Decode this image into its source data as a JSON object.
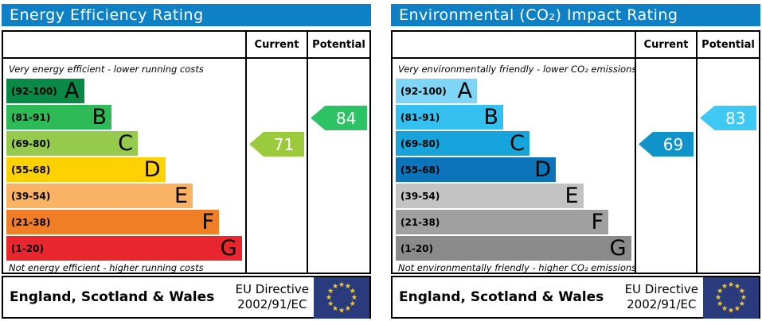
{
  "panels": [
    {
      "title": "Energy Efficiency Rating",
      "header": {
        "current": "Current",
        "potential": "Potential"
      },
      "captions": {
        "top": "Very energy efficient - lower running costs",
        "bottom": "Not energy efficient - higher running costs"
      },
      "bands": [
        {
          "range": "(92-100)",
          "letter": "A",
          "color": "#088a46",
          "width_pct": 32.5
        },
        {
          "range": "(81-91)",
          "letter": "B",
          "color": "#2dba57",
          "width_pct": 44
        },
        {
          "range": "(69-80)",
          "letter": "C",
          "color": "#95ca4d",
          "width_pct": 55
        },
        {
          "range": "(55-68)",
          "letter": "D",
          "color": "#fed105",
          "width_pct": 66.5
        },
        {
          "range": "(39-54)",
          "letter": "E",
          "color": "#fab264",
          "width_pct": 78
        },
        {
          "range": "(21-38)",
          "letter": "F",
          "color": "#f07e26",
          "width_pct": 89
        },
        {
          "range": "(1-20)",
          "letter": "G",
          "color": "#e8262d",
          "width_pct": 98.5
        }
      ],
      "arrows": {
        "current": {
          "value": "71",
          "color": "#9bca3d",
          "band_index": 2
        },
        "potential": {
          "value": "84",
          "color": "#2dc263",
          "band_index": 1
        }
      },
      "footer": {
        "region": "England, Scotland & Wales",
        "directive": [
          "EU Directive",
          "2002/91/EC"
        ]
      }
    },
    {
      "title": "Environmental (CO₂) Impact Rating",
      "header": {
        "current": "Current",
        "potential": "Potential"
      },
      "captions": {
        "top": "Very environmentally friendly - lower CO₂ emissions",
        "bottom": "Not environmentally friendly - higher CO₂ emissions"
      },
      "bands": [
        {
          "range": "(92-100)",
          "letter": "A",
          "color": "#7ed5f5",
          "width_pct": 34
        },
        {
          "range": "(81-91)",
          "letter": "B",
          "color": "#35c1f0",
          "width_pct": 45
        },
        {
          "range": "(69-80)",
          "letter": "C",
          "color": "#17a3dc",
          "width_pct": 56
        },
        {
          "range": "(55-68)",
          "letter": "D",
          "color": "#0c74b8",
          "width_pct": 67
        },
        {
          "range": "(39-54)",
          "letter": "E",
          "color": "#c3c3c3",
          "width_pct": 78.5
        },
        {
          "range": "(21-38)",
          "letter": "F",
          "color": "#a0a0a0",
          "width_pct": 89
        },
        {
          "range": "(1-20)",
          "letter": "G",
          "color": "#8a8a8a",
          "width_pct": 98.5
        }
      ],
      "arrows": {
        "current": {
          "value": "69",
          "color": "#0f93c9",
          "band_index": 2
        },
        "potential": {
          "value": "83",
          "color": "#3fc8f4",
          "band_index": 1
        }
      },
      "footer": {
        "region": "England, Scotland & Wales",
        "directive": [
          "EU Directive",
          "2002/91/EC"
        ]
      }
    }
  ],
  "flag_colors": {
    "field": "#2a3b7d",
    "stars": "#ffcc00"
  },
  "chart_data": [
    {
      "type": "bar",
      "title": "Energy Efficiency Rating",
      "categories": [
        "A (92-100)",
        "B (81-91)",
        "C (69-80)",
        "D (55-68)",
        "E (39-54)",
        "F (21-38)",
        "G (1-20)"
      ],
      "band_colors": [
        "#088a46",
        "#2dba57",
        "#95ca4d",
        "#fed105",
        "#fab264",
        "#f07e26",
        "#e8262d"
      ],
      "series": [
        {
          "name": "Current",
          "value": 71,
          "band": "C"
        },
        {
          "name": "Potential",
          "value": 84,
          "band": "B"
        }
      ],
      "top_note": "Very energy efficient - lower running costs",
      "bottom_note": "Not energy efficient - higher running costs",
      "region": "England, Scotland & Wales",
      "directive": "EU Directive 2002/91/EC",
      "scale": [
        1,
        100
      ]
    },
    {
      "type": "bar",
      "title": "Environmental (CO₂) Impact Rating",
      "categories": [
        "A (92-100)",
        "B (81-91)",
        "C (69-80)",
        "D (55-68)",
        "E (39-54)",
        "F (21-38)",
        "G (1-20)"
      ],
      "band_colors": [
        "#7ed5f5",
        "#35c1f0",
        "#17a3dc",
        "#0c74b8",
        "#c3c3c3",
        "#a0a0a0",
        "#8a8a8a"
      ],
      "series": [
        {
          "name": "Current",
          "value": 69,
          "band": "C"
        },
        {
          "name": "Potential",
          "value": 83,
          "band": "B"
        }
      ],
      "top_note": "Very environmentally friendly - lower CO₂ emissions",
      "bottom_note": "Not environmentally friendly - higher CO₂ emissions",
      "region": "England, Scotland & Wales",
      "directive": "EU Directive 2002/91/EC",
      "scale": [
        1,
        100
      ]
    }
  ]
}
